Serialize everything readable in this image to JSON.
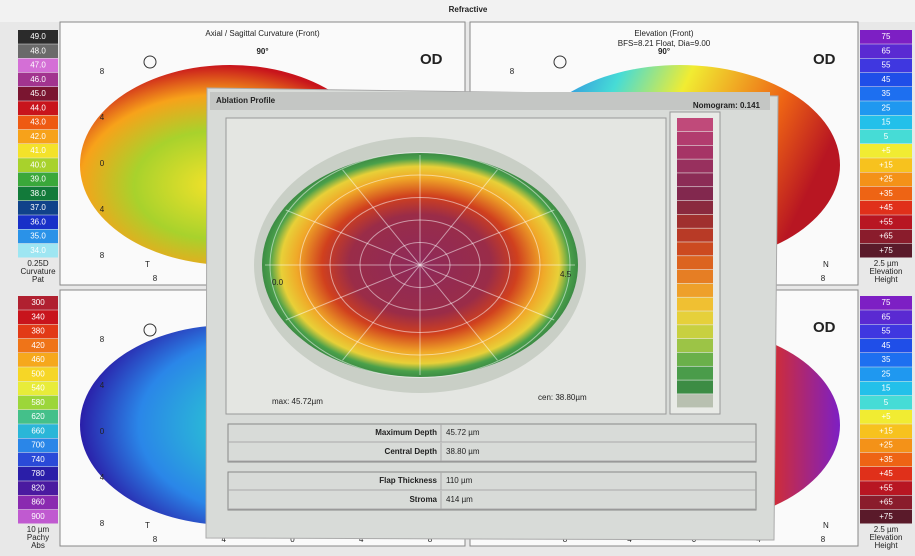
{
  "header": {
    "title": "Refractive"
  },
  "panels": [
    {
      "title": "Axial / Sagittal Curvature (Front)",
      "eye": "OD",
      "angle": "90°",
      "left_letter": "T"
    },
    {
      "title": "Elevation (Front)",
      "subtitle": "BFS=8.21 Float, Dia=9.00",
      "eye": "OD",
      "angle": "90°",
      "right_letter": "N"
    },
    {
      "left_letter": "T"
    },
    {
      "eye": "OD",
      "right_letter": "N"
    }
  ],
  "axis_ticks": [
    "8",
    "4",
    "0",
    "4",
    "8"
  ],
  "scales": [
    {
      "items": [
        {
          "label": "49.0",
          "color": "#2b2b2b"
        },
        {
          "label": "48.0",
          "color": "#6a6a6a"
        },
        {
          "label": "47.0",
          "color": "#d46fd6"
        },
        {
          "label": "46.0",
          "color": "#a2348f"
        },
        {
          "label": "45.0",
          "color": "#7a1530"
        },
        {
          "label": "44.0",
          "color": "#c8141c"
        },
        {
          "label": "43.0",
          "color": "#ee5a12"
        },
        {
          "label": "42.0",
          "color": "#f7a21a"
        },
        {
          "label": "41.0",
          "color": "#f4e22a"
        },
        {
          "label": "40.0",
          "color": "#a8d22c"
        },
        {
          "label": "39.0",
          "color": "#3aa83a"
        },
        {
          "label": "38.0",
          "color": "#127a3a"
        },
        {
          "label": "37.0",
          "color": "#10428a"
        },
        {
          "label": "36.0",
          "color": "#1830c8"
        },
        {
          "label": "35.0",
          "color": "#2a92e8"
        },
        {
          "label": "34.0",
          "color": "#9ee6f2"
        }
      ],
      "footer": [
        "0.25D",
        "Curvature",
        "Pat"
      ]
    },
    {
      "items": [
        {
          "label": "75",
          "color": "#7d1fc4"
        },
        {
          "label": "65",
          "color": "#5a2ad2"
        },
        {
          "label": "55",
          "color": "#3f37e0"
        },
        {
          "label": "45",
          "color": "#1f4ee8"
        },
        {
          "label": "35",
          "color": "#1d6ff0"
        },
        {
          "label": "25",
          "color": "#1f98f0"
        },
        {
          "label": "15",
          "color": "#23c0ea"
        },
        {
          "label": "5",
          "color": "#46dcd6"
        },
        {
          "label": "+5",
          "color": "#f1ec32"
        },
        {
          "label": "+15",
          "color": "#f7c21e"
        },
        {
          "label": "+25",
          "color": "#f49218"
        },
        {
          "label": "+35",
          "color": "#ee6414"
        },
        {
          "label": "+45",
          "color": "#e0301a"
        },
        {
          "label": "+55",
          "color": "#b81622"
        },
        {
          "label": "+65",
          "color": "#8a1c2c"
        },
        {
          "label": "+75",
          "color": "#5a1a2a"
        }
      ],
      "footer": [
        "2.5 µm",
        "Elevation",
        "Height"
      ]
    },
    {
      "items": [
        {
          "label": "300",
          "color": "#b02030"
        },
        {
          "label": "340",
          "color": "#c8141c"
        },
        {
          "label": "380",
          "color": "#e23a16"
        },
        {
          "label": "420",
          "color": "#ef7418"
        },
        {
          "label": "460",
          "color": "#f6a81c"
        },
        {
          "label": "500",
          "color": "#f6d626"
        },
        {
          "label": "540",
          "color": "#e8ec3a"
        },
        {
          "label": "580",
          "color": "#9cd63a"
        },
        {
          "label": "620",
          "color": "#44c08a"
        },
        {
          "label": "660",
          "color": "#2ab6d8"
        },
        {
          "label": "700",
          "color": "#2a86e8"
        },
        {
          "label": "740",
          "color": "#2a4ad8"
        },
        {
          "label": "780",
          "color": "#2a1ea8"
        },
        {
          "label": "820",
          "color": "#4a1aa0"
        },
        {
          "label": "860",
          "color": "#8a2ab0"
        },
        {
          "label": "900",
          "color": "#c05ad0"
        }
      ],
      "footer": [
        "10 µm",
        "Pachy",
        "Abs"
      ]
    },
    {
      "items": [
        {
          "label": "75",
          "color": "#7d1fc4"
        },
        {
          "label": "65",
          "color": "#5a2ad2"
        },
        {
          "label": "55",
          "color": "#3f37e0"
        },
        {
          "label": "45",
          "color": "#1f4ee8"
        },
        {
          "label": "35",
          "color": "#1d6ff0"
        },
        {
          "label": "25",
          "color": "#1f98f0"
        },
        {
          "label": "15",
          "color": "#23c0ea"
        },
        {
          "label": "5",
          "color": "#46dcd6"
        },
        {
          "label": "+5",
          "color": "#f1ec32"
        },
        {
          "label": "+15",
          "color": "#f7c21e"
        },
        {
          "label": "+25",
          "color": "#f49218"
        },
        {
          "label": "+35",
          "color": "#ee6414"
        },
        {
          "label": "+45",
          "color": "#e0301a"
        },
        {
          "label": "+55",
          "color": "#b81622"
        },
        {
          "label": "+65",
          "color": "#8a1c2c"
        },
        {
          "label": "+75",
          "color": "#5a1a2a"
        }
      ],
      "footer": [
        "2.5 µm",
        "Elevation",
        "Height"
      ]
    }
  ],
  "overlay": {
    "title": "Ablation Profile",
    "nomogram": "Nomogram: 0.141",
    "left_label": "0.0",
    "right_label": "4.5",
    "max": "max: 45.72µm",
    "cen": "cen: 38.80µm",
    "rows": [
      [
        "Maximum Depth",
        "45.72 µm"
      ],
      [
        "Central Depth",
        "38.80 µm"
      ],
      [
        "Flap Thickness",
        "110 µm"
      ],
      [
        "Stroma",
        "414 µm"
      ]
    ],
    "scale_colors": [
      "#c04a7a",
      "#b23c6e",
      "#a63466",
      "#98305e",
      "#8c2c56",
      "#82284e",
      "#8a2a3e",
      "#a0302e",
      "#b83a26",
      "#cc4a20",
      "#dc6420",
      "#e67e24",
      "#eea02a",
      "#f0c032",
      "#e6d03a",
      "#c8d040",
      "#9cc446",
      "#6ab04a",
      "#4a9c4a",
      "#3c8c44",
      "#b8c0b0"
    ]
  }
}
